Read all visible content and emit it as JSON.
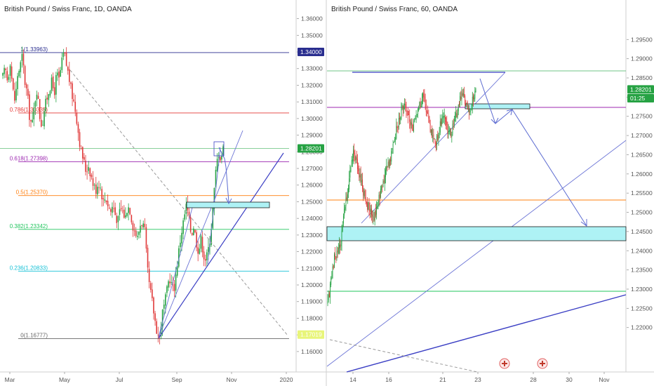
{
  "chart_data": [
    {
      "type": "candlestick",
      "title": "British Pound / Swiss Franc, 1D, OANDA",
      "ylim": [
        1.157,
        1.367
      ],
      "y_ticks": [
        "1.36000",
        "1.35000",
        "1.34000",
        "1.33000",
        "1.32000",
        "1.31000",
        "1.30000",
        "1.29000",
        "1.28000",
        "1.27000",
        "1.26000",
        "1.25000",
        "1.24000",
        "1.23000",
        "1.22000",
        "1.21000",
        "1.20000",
        "1.19000",
        "1.18000",
        "1.17000",
        "1.16000"
      ],
      "x_ticks": [
        "Mar",
        "May",
        "Jul",
        "Sep",
        "Nov",
        "2020"
      ],
      "price_tags": [
        {
          "label": "1.34000",
          "value": 1.34,
          "color": "#2a2e8f"
        },
        {
          "label": "1.28201",
          "value": 1.28201,
          "color": "#26a243"
        },
        {
          "label": "1.17019",
          "value": 1.17019,
          "color": "#e8f57a"
        }
      ],
      "fib_levels": [
        {
          "label": "1(1.33963)",
          "value": 1.33963,
          "color": "#2a2e8f"
        },
        {
          "label": "0.786(1.30335)",
          "value": 1.30335,
          "color": "#e53935"
        },
        {
          "label": "0.618(1.27398)",
          "value": 1.27398,
          "color": "#9c27b0"
        },
        {
          "label": "0.5(1.25370)",
          "value": 1.2537,
          "color": "#ff7f0e"
        },
        {
          "label": "0.382(1.23342)",
          "value": 1.23342,
          "color": "#22c55e"
        },
        {
          "label": "0.236(1.20833)",
          "value": 1.20833,
          "color": "#16c1d6"
        },
        {
          "label": "0(1.16777)",
          "value": 1.16777,
          "color": "#666666"
        }
      ],
      "series": [
        {
          "values": [
            1.325,
            1.33,
            1.322,
            1.335,
            1.318,
            1.31,
            1.326,
            1.331,
            1.338,
            1.322,
            1.315,
            1.3,
            1.296,
            1.31,
            1.318,
            1.302,
            1.295,
            1.306,
            1.312,
            1.318,
            1.322,
            1.315,
            1.327,
            1.323,
            1.333,
            1.34,
            1.332,
            1.325,
            1.316,
            1.31,
            1.302,
            1.29,
            1.28,
            1.275,
            1.268,
            1.272,
            1.266,
            1.26,
            1.257,
            1.262,
            1.258,
            1.25,
            1.253,
            1.248,
            1.244,
            1.248,
            1.242,
            1.238,
            1.246,
            1.244,
            1.24,
            1.248,
            1.245,
            1.236,
            1.232,
            1.228,
            1.236,
            1.238,
            1.232,
            1.21,
            1.198,
            1.19,
            1.18,
            1.172,
            1.168,
            1.182,
            1.188,
            1.196,
            1.205,
            1.2,
            1.198,
            1.21,
            1.222,
            1.232,
            1.24,
            1.248,
            1.24,
            1.23,
            1.236,
            1.226,
            1.22,
            1.228,
            1.218,
            1.215,
            1.222,
            1.232,
            1.25,
            1.268,
            1.28,
            1.276,
            1.282
          ]
        }
      ]
    },
    {
      "type": "candlestick",
      "title": "British Pound / Swiss Franc, 60, OANDA",
      "ylim": [
        1.213,
        1.302
      ],
      "y_ticks": [
        "1.29500",
        "1.29000",
        "1.28500",
        "1.28000",
        "1.27500",
        "1.27000",
        "1.26500",
        "1.26000",
        "1.25500",
        "1.25000",
        "1.24500",
        "1.24000",
        "1.23500",
        "1.23000",
        "1.22500",
        "1.22000"
      ],
      "x_ticks": [
        "14",
        "16",
        "21",
        "23",
        "28",
        "30",
        "Nov"
      ],
      "price_tags": [
        {
          "label": "1.28201",
          "value": 1.28201,
          "color": "#26a243"
        },
        {
          "label": "01:25",
          "value": 1.2797,
          "color": "#26a243"
        }
      ],
      "series": [
        {
          "values": [
            1.226,
            1.232,
            1.238,
            1.24,
            1.242,
            1.25,
            1.255,
            1.262,
            1.266,
            1.262,
            1.258,
            1.255,
            1.252,
            1.25,
            1.248,
            1.252,
            1.255,
            1.258,
            1.262,
            1.264,
            1.268,
            1.272,
            1.275,
            1.278,
            1.276,
            1.274,
            1.272,
            1.276,
            1.278,
            1.28,
            1.277,
            1.272,
            1.27,
            1.268,
            1.272,
            1.276,
            1.273,
            1.27,
            1.272,
            1.275,
            1.279,
            1.281,
            1.278,
            1.276,
            1.279,
            1.282
          ]
        }
      ]
    }
  ]
}
